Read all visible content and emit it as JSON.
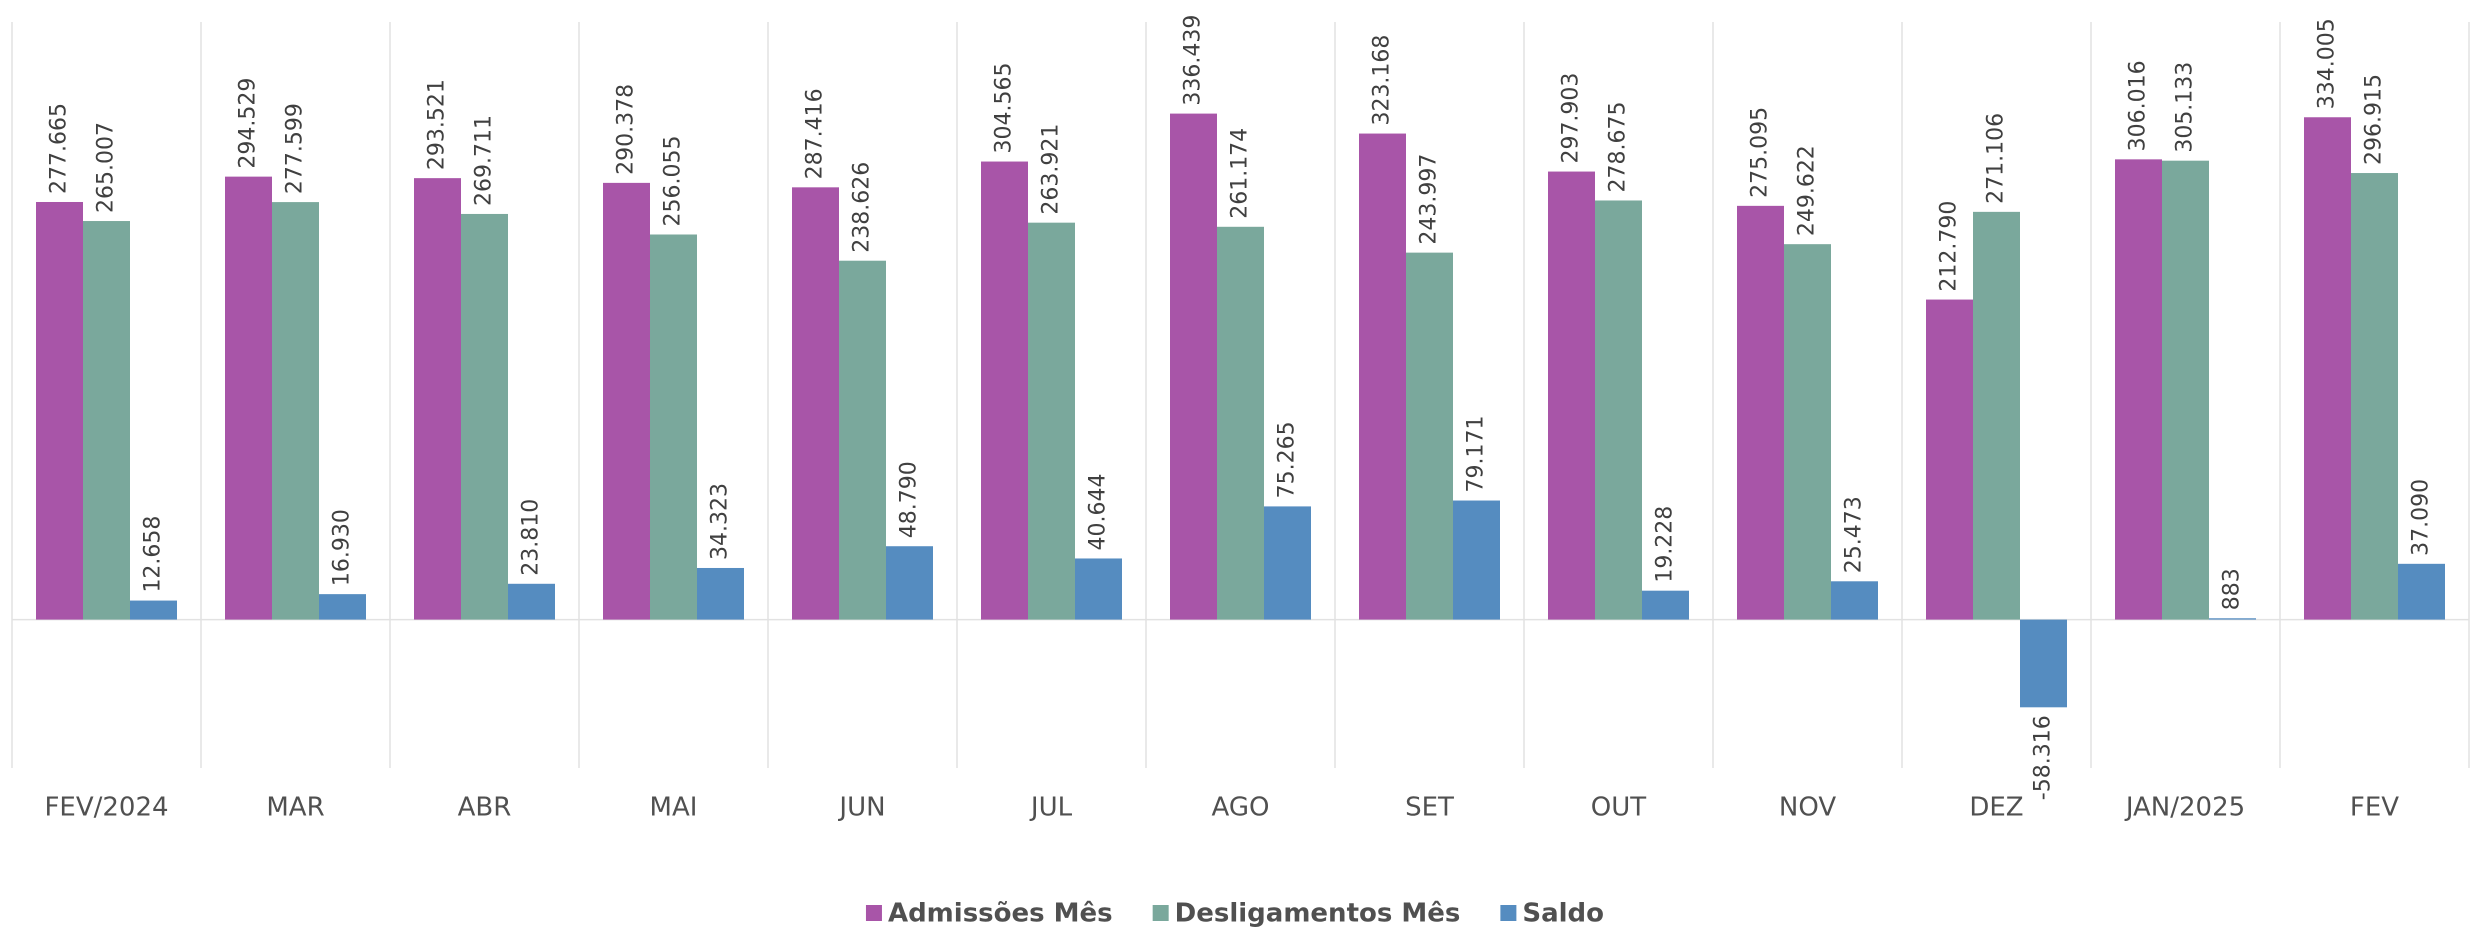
{
  "chart_data": {
    "type": "bar",
    "categories": [
      "FEV/2024",
      "MAR",
      "ABR",
      "MAI",
      "JUN",
      "JUL",
      "AGO",
      "SET",
      "OUT",
      "NOV",
      "DEZ",
      "JAN/2025",
      "FEV"
    ],
    "ylim": [
      -100000,
      400000
    ],
    "series": [
      {
        "name": "Admissões Mês",
        "color": "#a855a8",
        "values": [
          277665,
          294529,
          293521,
          290378,
          287416,
          304565,
          336439,
          323168,
          297903,
          275095,
          212790,
          306016,
          334005
        ],
        "value_labels": [
          "277.665",
          "294.529",
          "293.521",
          "290.378",
          "287.416",
          "304.565",
          "336.439",
          "323.168",
          "297.903",
          "275.095",
          "212.790",
          "306.016",
          "334.005"
        ]
      },
      {
        "name": "Desligamentos Mês",
        "color": "#7aa89c",
        "values": [
          265007,
          277599,
          269711,
          256055,
          238626,
          263921,
          261174,
          243997,
          278675,
          249622,
          271106,
          305133,
          296915
        ],
        "value_labels": [
          "265.007",
          "277.599",
          "269.711",
          "256.055",
          "238.626",
          "263.921",
          "261.174",
          "243.997",
          "278.675",
          "249.622",
          "271.106",
          "305.133",
          "296.915"
        ]
      },
      {
        "name": "Saldo",
        "color": "#558cc0",
        "values": [
          12658,
          16930,
          23810,
          34323,
          48790,
          40644,
          75265,
          79171,
          19228,
          25473,
          -58316,
          883,
          37090
        ],
        "value_labels": [
          "12.658",
          "16.930",
          "23.810",
          "34.323",
          "48.790",
          "40.644",
          "75.265",
          "79.171",
          "19.228",
          "25.473",
          "-58.316",
          "883",
          "37.090"
        ]
      }
    ],
    "legend": "bottom"
  }
}
